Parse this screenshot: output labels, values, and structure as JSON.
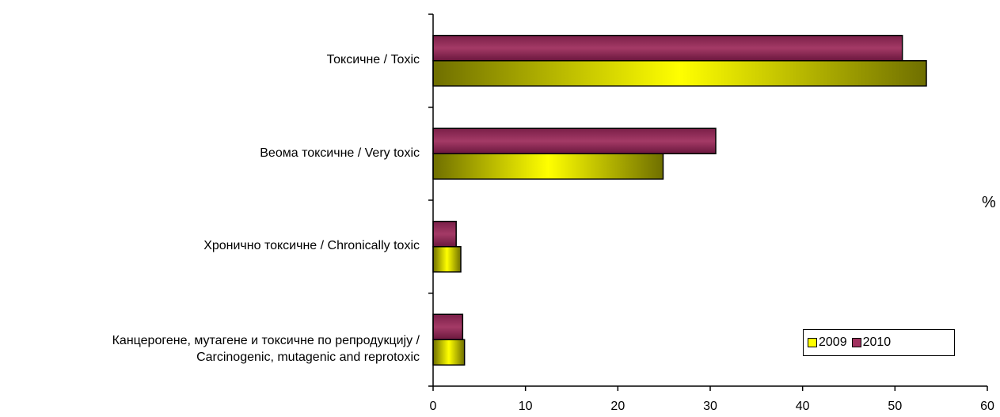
{
  "chart_data": {
    "type": "bar",
    "orientation": "horizontal",
    "categories": [
      "Токсичне / Toxic",
      "Веома токсичне / Very toxic",
      "Хронично токсичне / Chronically toxic",
      "Канцерогене, мутагене и токсичне по репродукцију / Carcinogenic, mutagenic and reprotoxic"
    ],
    "category_lines": [
      [
        "Токсичне / Toxic"
      ],
      [
        "Веома токсичне / Very toxic"
      ],
      [
        "Хронично токсичне / Chronically toxic"
      ],
      [
        "Канцерогене, мутагене и токсичне по репродукцију /",
        "Carcinogenic, mutagenic and reprotoxic"
      ]
    ],
    "series": [
      {
        "name": "2009",
        "values": [
          53.4,
          24.9,
          3.0,
          3.4
        ],
        "color": "#ffff00",
        "edge_color": "#6f6f00"
      },
      {
        "name": "2010",
        "values": [
          50.8,
          30.6,
          2.5,
          3.2
        ],
        "color": "#a0325f",
        "edge_color": "#5e1435"
      }
    ],
    "xlim": [
      0,
      60
    ],
    "xticks": [
      "0",
      "10",
      "20",
      "30",
      "40",
      "50",
      "60"
    ],
    "unit_label": "%",
    "legend_position": "bottom-right",
    "grid": false
  }
}
